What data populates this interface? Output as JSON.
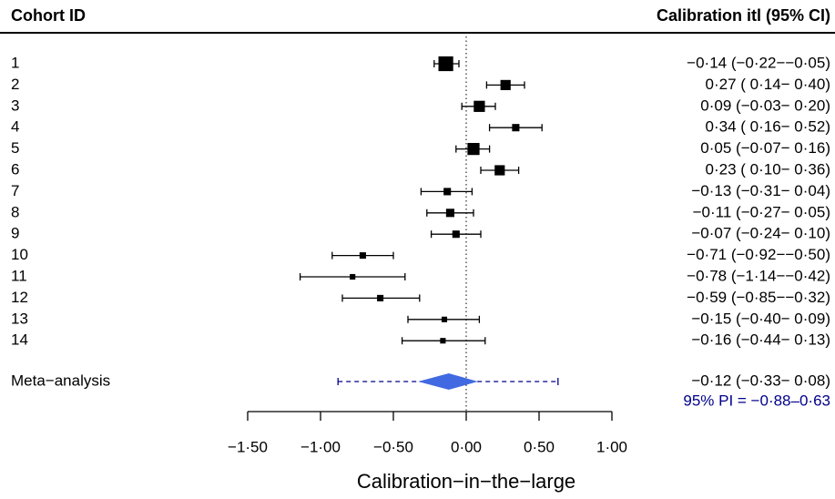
{
  "chart_data": {
    "type": "forest",
    "left_header": "Cohort ID",
    "right_header": "Calibration itl (95% CI)",
    "categories": [
      "1",
      "2",
      "3",
      "4",
      "5",
      "6",
      "7",
      "8",
      "9",
      "10",
      "11",
      "12",
      "13",
      "14"
    ],
    "values": [
      -0.14,
      0.27,
      0.09,
      0.34,
      0.05,
      0.23,
      -0.13,
      -0.11,
      -0.07,
      -0.71,
      -0.78,
      -0.59,
      -0.15,
      -0.16
    ],
    "lower": [
      -0.22,
      0.14,
      -0.03,
      0.16,
      -0.07,
      0.1,
      -0.31,
      -0.27,
      -0.24,
      -0.92,
      -1.14,
      -0.85,
      -0.4,
      -0.44
    ],
    "upper": [
      -0.05,
      0.4,
      0.2,
      0.52,
      0.16,
      0.36,
      0.04,
      0.05,
      0.1,
      -0.5,
      -0.42,
      -0.32,
      0.09,
      0.13
    ],
    "weights": [
      10.5,
      5,
      6,
      2.6,
      7,
      5,
      2.6,
      3.3,
      2.6,
      2,
      1.5,
      2,
      1.5,
      1.5
    ],
    "value_labels": [
      "−0·14 (−0·22−−0·05)",
      "0·27 ( 0·14− 0·40)",
      "0·09 (−0·03− 0·20)",
      "0·34 ( 0·16− 0·52)",
      "0·05 (−0·07− 0·16)",
      "0·23 ( 0·10− 0·36)",
      "−0·13 (−0·31− 0·04)",
      "−0·11 (−0·27− 0·05)",
      "−0·07 (−0·24− 0·10)",
      "−0·71 (−0·92−−0·50)",
      "−0·78 (−1·14−−0·42)",
      "−0·59 (−0·85−−0·32)",
      "−0·15 (−0·40− 0·09)",
      "−0·16 (−0·44− 0·13)"
    ],
    "color": "#000000",
    "summary": {
      "label": "Meta−analysis",
      "value": -0.12,
      "lower": -0.33,
      "upper": 0.08,
      "value_label": "−0·12 (−0·33− 0·08)",
      "pi_lower": -0.88,
      "pi_upper": 0.63,
      "pi_label": "95% PI = −0·88–0·63",
      "color": "#4169e1",
      "pi_color": "#00008b"
    },
    "xlim": [
      -1.5,
      1.0
    ],
    "xticks": [
      {
        "value": -1.5,
        "label": "−1·50"
      },
      {
        "value": -1.0,
        "label": "−1·00"
      },
      {
        "value": -0.5,
        "label": "−0·50"
      },
      {
        "value": 0,
        "label": "0·00"
      },
      {
        "value": 0.5,
        "label": "0·50"
      },
      {
        "value": 1.0,
        "label": "1·00"
      }
    ],
    "xlabel": "Calibration−in−the−large",
    "refline": 0
  }
}
